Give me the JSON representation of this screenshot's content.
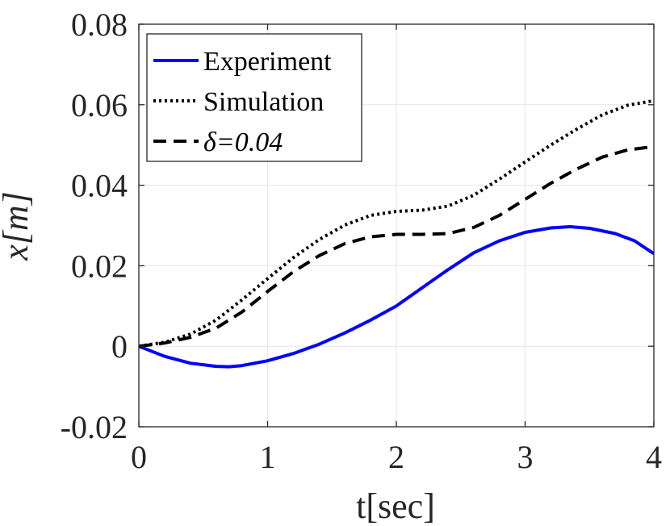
{
  "chart_data": {
    "type": "line",
    "xlabel": "t[sec]",
    "ylabel": "x[m]",
    "xlim": [
      0,
      4
    ],
    "ylim": [
      -0.02,
      0.08
    ],
    "xticks": [
      0,
      1,
      2,
      3,
      4
    ],
    "xtick_labels": [
      "0",
      "1",
      "2",
      "3",
      "4"
    ],
    "yticks": [
      -0.02,
      0,
      0.02,
      0.04,
      0.06,
      0.08
    ],
    "ytick_labels": [
      "-0.02",
      "0",
      "0.02",
      "0.04",
      "0.06",
      "0.08"
    ],
    "grid": true,
    "legend_position": "top-left",
    "series": [
      {
        "name": "Experiment",
        "color": "#0000ff",
        "style": "solid",
        "x": [
          0,
          0.2,
          0.4,
          0.6,
          0.7,
          0.8,
          1.0,
          1.2,
          1.4,
          1.6,
          1.8,
          2.0,
          2.2,
          2.4,
          2.6,
          2.8,
          3.0,
          3.2,
          3.35,
          3.5,
          3.7,
          3.85,
          4.0
        ],
        "y": [
          0,
          -0.0025,
          -0.0042,
          -0.005,
          -0.0051,
          -0.0048,
          -0.0036,
          -0.0018,
          0.0005,
          0.0033,
          0.0065,
          0.01,
          0.0145,
          0.019,
          0.0232,
          0.0262,
          0.0283,
          0.0294,
          0.0297,
          0.0293,
          0.028,
          0.0262,
          0.023
        ]
      },
      {
        "name": "Simulation",
        "color": "#000000",
        "style": "dotted",
        "x": [
          0,
          0.2,
          0.4,
          0.6,
          0.8,
          1.0,
          1.2,
          1.4,
          1.6,
          1.8,
          2.0,
          2.2,
          2.4,
          2.6,
          2.8,
          3.0,
          3.2,
          3.4,
          3.6,
          3.8,
          4.0
        ],
        "y": [
          0,
          0.001,
          0.003,
          0.0065,
          0.0115,
          0.0168,
          0.022,
          0.0265,
          0.0301,
          0.0325,
          0.0335,
          0.0338,
          0.0348,
          0.0375,
          0.0415,
          0.0458,
          0.05,
          0.0539,
          0.0575,
          0.0599,
          0.061
        ]
      },
      {
        "name": "δ=0.04",
        "color": "#000000",
        "style": "dashed",
        "x": [
          0,
          0.2,
          0.4,
          0.6,
          0.8,
          1.0,
          1.2,
          1.4,
          1.6,
          1.8,
          2.0,
          2.2,
          2.4,
          2.6,
          2.8,
          3.0,
          3.2,
          3.4,
          3.6,
          3.8,
          4.0
        ],
        "y": [
          0,
          0.0008,
          0.0022,
          0.0045,
          0.0085,
          0.0136,
          0.0185,
          0.0225,
          0.0255,
          0.0272,
          0.0278,
          0.0278,
          0.028,
          0.0295,
          0.0325,
          0.0365,
          0.0405,
          0.044,
          0.047,
          0.0488,
          0.0496
        ]
      }
    ]
  }
}
